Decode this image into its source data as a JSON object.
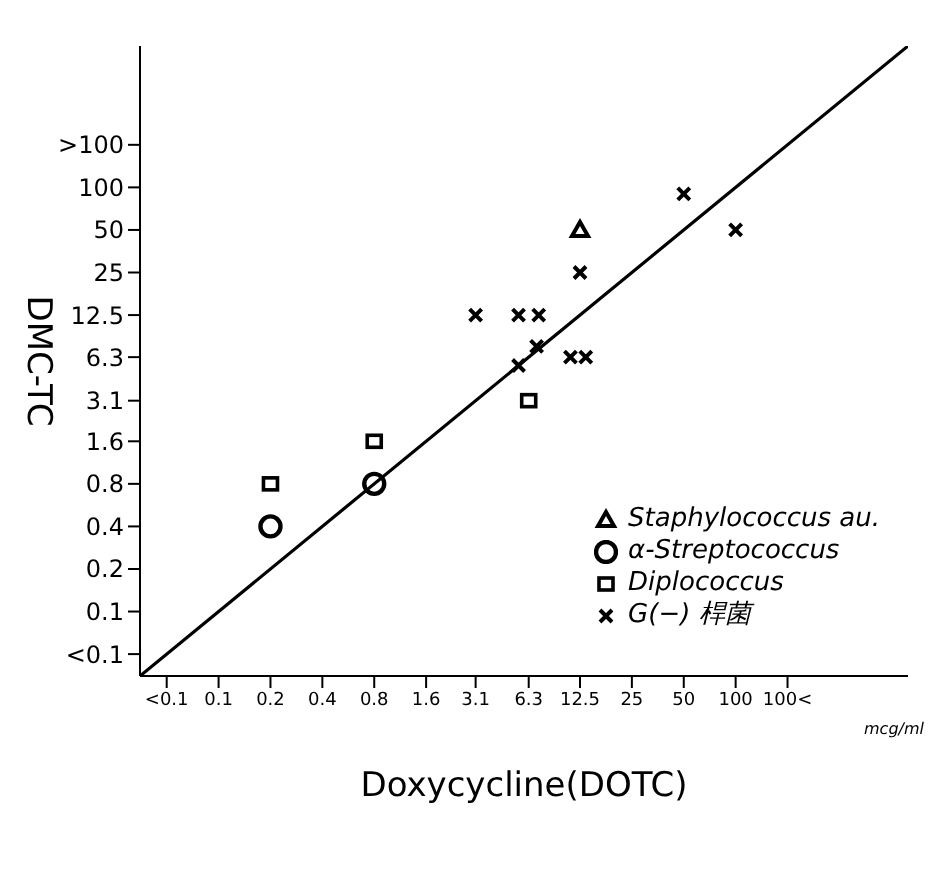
{
  "chart_data": {
    "type": "scatter",
    "xlabel": "Doxycycline(DOTC)",
    "ylabel": "DMC-TC",
    "log": "xy",
    "xlim": [
      0.035,
      1000
    ],
    "ylim": [
      0.035,
      1000
    ],
    "xticks": [
      {
        "value": 0.05,
        "label": "<0.1"
      },
      0.1,
      0.2,
      0.4,
      0.8,
      1.6,
      3.1,
      6.3,
      12.5,
      25,
      50,
      100,
      {
        "value": 200,
        "label": "100<"
      }
    ],
    "yticks": [
      {
        "value": 0.05,
        "label": "<0.1"
      },
      0.1,
      0.2,
      0.4,
      0.8,
      1.6,
      3.1,
      6.3,
      12.5,
      25,
      50,
      100,
      {
        "value": 200,
        "label": ">100"
      }
    ],
    "grid": false,
    "legend": "bottom right",
    "annotations": [
      "mcg/ml"
    ],
    "series": [
      {
        "name": "Staphylococcus au.",
        "color": "#000000",
        "marker": "triangle",
        "x": [
          12.5
        ],
        "values": [
          50
        ]
      },
      {
        "name": "α-Streptococcus",
        "color": "#000000",
        "marker": "circle",
        "x": [
          0.2,
          0.8
        ],
        "values": [
          0.4,
          0.8
        ]
      },
      {
        "name": "Diplococcus",
        "color": "#000000",
        "marker": "square",
        "x": [
          0.2,
          0.8,
          6.3
        ],
        "values": [
          0.8,
          1.6,
          3.1
        ]
      },
      {
        "name": "G(−) 桿菌",
        "color": "#000000",
        "marker": "cross",
        "x": [
          50,
          100,
          12.5,
          3.1,
          5.5,
          7.2,
          5.5,
          7,
          11,
          13.5
        ],
        "values": [
          90,
          50,
          25,
          12.5,
          12.5,
          12.5,
          5.5,
          7.5,
          6.3,
          6.3
        ]
      },
      {
        "type": "line",
        "color": "#000000",
        "marker": "none",
        "x": [
          0.035,
          1000
        ],
        "values": [
          0.035,
          1000
        ]
      }
    ]
  }
}
